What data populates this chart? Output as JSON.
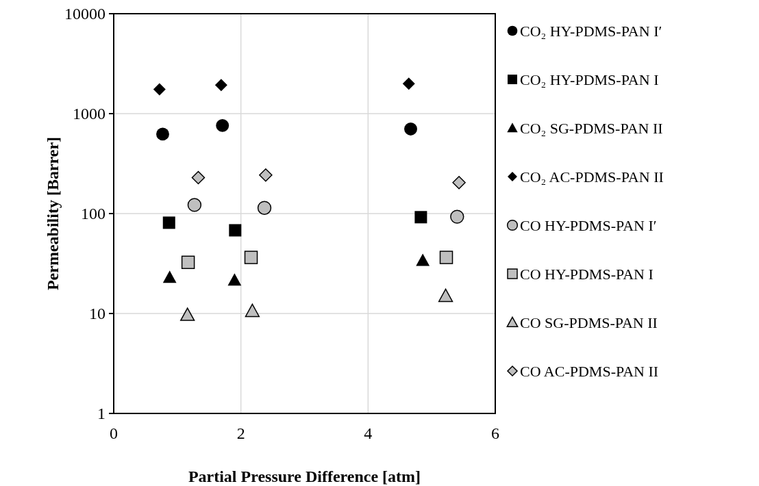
{
  "chart_data": {
    "type": "scatter",
    "xlabel": "Partial Pressure Difference [atm]",
    "ylabel": "Permeability [Barrer]",
    "log": "y",
    "xlim": [
      0,
      6
    ],
    "xticks": [
      0,
      2,
      4,
      6
    ],
    "ylim": [
      1,
      10000
    ],
    "yticks": [
      1,
      10,
      100,
      1000,
      10000
    ],
    "grid": true,
    "legend": "right",
    "series": [
      {
        "name": "CO₂ HY-PDMS-PAN I′",
        "color": "#000000",
        "marker": "circle",
        "x": [
          0.77,
          1.71,
          4.67
        ],
        "values": [
          624,
          760,
          702
        ]
      },
      {
        "name": "CO₂ HY-PDMS-PAN I",
        "color": "#000000",
        "marker": "square",
        "x": [
          0.87,
          1.91,
          4.83
        ],
        "values": [
          81,
          68,
          92
        ]
      },
      {
        "name": "CO₂ SG-PDMS-PAN II",
        "color": "#000000",
        "marker": "triangle",
        "x": [
          0.88,
          1.9,
          4.86
        ],
        "values": [
          23,
          21.6,
          34
        ]
      },
      {
        "name": "CO₂ AC-PDMS-PAN II",
        "color": "#000000",
        "marker": "diamond",
        "x": [
          0.72,
          1.69,
          4.64
        ],
        "values": [
          1750,
          1930,
          1990
        ]
      },
      {
        "name": "CO HY-PDMS-PAN I′",
        "color": "#bfbfbf",
        "marker": "circle",
        "x": [
          1.27,
          2.37,
          5.4
        ],
        "values": [
          122,
          114,
          93
        ]
      },
      {
        "name": "CO HY-PDMS-PAN I",
        "color": "#bfbfbf",
        "marker": "square",
        "x": [
          1.17,
          2.16,
          5.23
        ],
        "values": [
          32.5,
          36.4,
          36.4
        ]
      },
      {
        "name": "CO SG-PDMS-PAN II",
        "color": "#bfbfbf",
        "marker": "triangle",
        "x": [
          1.16,
          2.18,
          5.22
        ],
        "values": [
          9.7,
          10.6,
          15
        ]
      },
      {
        "name": "CO AC-PDMS-PAN II",
        "color": "#bfbfbf",
        "marker": "diamond",
        "x": [
          1.33,
          2.39,
          5.43
        ],
        "values": [
          229,
          243,
          204
        ]
      }
    ]
  }
}
